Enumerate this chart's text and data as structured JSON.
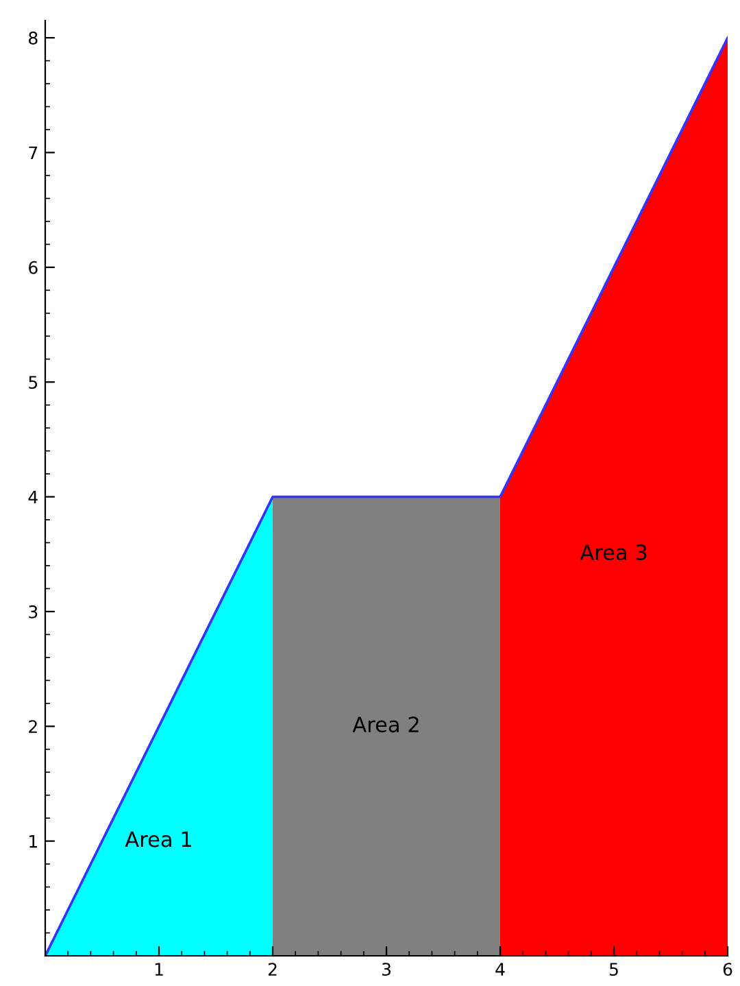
{
  "chart_data": {
    "type": "area",
    "xlim": [
      0,
      6
    ],
    "ylim": [
      0,
      8.15
    ],
    "xticks": [
      1,
      2,
      3,
      4,
      5,
      6
    ],
    "yticks": [
      1,
      2,
      3,
      4,
      5,
      6,
      7,
      8
    ],
    "grid": false,
    "legend": false,
    "series": [
      {
        "x": [
          0,
          2
        ],
        "values": [
          0,
          4
        ],
        "color": "#00ffff"
      },
      {
        "x": [
          2,
          4
        ],
        "values": [
          4,
          4
        ],
        "color": "#808080"
      },
      {
        "x": [
          4,
          6
        ],
        "values": [
          4,
          8
        ],
        "color": "#ff0000"
      },
      {
        "type": "line",
        "x": [
          0,
          2,
          4,
          6
        ],
        "values": [
          0,
          4,
          4,
          8
        ],
        "color": "#3333ff"
      }
    ],
    "annotations": [
      "Area 1",
      "Area 2",
      "Area 3"
    ]
  }
}
